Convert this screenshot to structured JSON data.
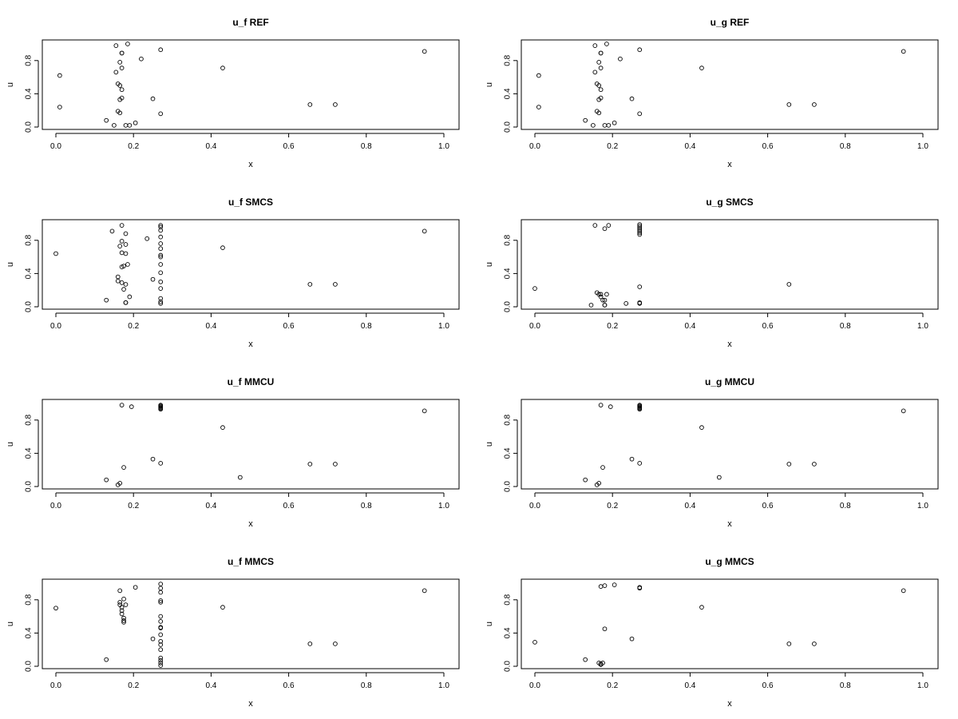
{
  "chart_data": [
    {
      "type": "scatter",
      "title": "u_f REF",
      "xlabel": "x",
      "ylabel": "u",
      "xlim": [
        0,
        1
      ],
      "ylim": [
        0,
        1
      ],
      "xticks": [
        "0.0",
        "0.2",
        "0.4",
        "0.6",
        "0.8",
        "1.0"
      ],
      "yticks": [
        "0.0",
        "0.4",
        "0.8"
      ],
      "points": [
        [
          0.01,
          0.62
        ],
        [
          0.01,
          0.24
        ],
        [
          0.13,
          0.08
        ],
        [
          0.15,
          0.02
        ],
        [
          0.155,
          0.98
        ],
        [
          0.155,
          0.66
        ],
        [
          0.16,
          0.52
        ],
        [
          0.16,
          0.19
        ],
        [
          0.165,
          0.5
        ],
        [
          0.165,
          0.33
        ],
        [
          0.165,
          0.78
        ],
        [
          0.165,
          0.17
        ],
        [
          0.17,
          0.89
        ],
        [
          0.17,
          0.35
        ],
        [
          0.17,
          0.45
        ],
        [
          0.17,
          0.71
        ],
        [
          0.17,
          0.89
        ],
        [
          0.18,
          0.02
        ],
        [
          0.185,
          1.0
        ],
        [
          0.19,
          0.02
        ],
        [
          0.205,
          0.05
        ],
        [
          0.22,
          0.82
        ],
        [
          0.25,
          0.34
        ],
        [
          0.27,
          0.93
        ],
        [
          0.27,
          0.16
        ],
        [
          0.43,
          0.71
        ],
        [
          0.655,
          0.27
        ],
        [
          0.72,
          0.27
        ],
        [
          0.95,
          0.91
        ]
      ]
    },
    {
      "type": "scatter",
      "title": "u_g REF",
      "xlabel": "x",
      "ylabel": "u",
      "xlim": [
        0,
        1
      ],
      "ylim": [
        0,
        1
      ],
      "xticks": [
        "0.0",
        "0.2",
        "0.4",
        "0.6",
        "0.8",
        "1.0"
      ],
      "yticks": [
        "0.0",
        "0.4",
        "0.8"
      ],
      "points": [
        [
          0.01,
          0.62
        ],
        [
          0.01,
          0.24
        ],
        [
          0.13,
          0.08
        ],
        [
          0.15,
          0.02
        ],
        [
          0.155,
          0.98
        ],
        [
          0.155,
          0.66
        ],
        [
          0.16,
          0.52
        ],
        [
          0.16,
          0.19
        ],
        [
          0.165,
          0.5
        ],
        [
          0.165,
          0.33
        ],
        [
          0.165,
          0.78
        ],
        [
          0.165,
          0.17
        ],
        [
          0.17,
          0.89
        ],
        [
          0.17,
          0.35
        ],
        [
          0.17,
          0.45
        ],
        [
          0.17,
          0.71
        ],
        [
          0.17,
          0.89
        ],
        [
          0.18,
          0.02
        ],
        [
          0.185,
          1.0
        ],
        [
          0.19,
          0.02
        ],
        [
          0.205,
          0.05
        ],
        [
          0.22,
          0.82
        ],
        [
          0.25,
          0.34
        ],
        [
          0.27,
          0.93
        ],
        [
          0.27,
          0.16
        ],
        [
          0.43,
          0.71
        ],
        [
          0.655,
          0.27
        ],
        [
          0.72,
          0.27
        ],
        [
          0.95,
          0.91
        ]
      ]
    },
    {
      "type": "scatter",
      "title": "u_f SMCS",
      "xlabel": "x",
      "ylabel": "u",
      "xlim": [
        0,
        1
      ],
      "ylim": [
        0,
        1
      ],
      "xticks": [
        "0.0",
        "0.2",
        "0.4",
        "0.6",
        "0.8",
        "1.0"
      ],
      "yticks": [
        "0.0",
        "0.4",
        "0.8"
      ],
      "points": [
        [
          0.0,
          0.64
        ],
        [
          0.13,
          0.08
        ],
        [
          0.145,
          0.91
        ],
        [
          0.16,
          0.31
        ],
        [
          0.16,
          0.36
        ],
        [
          0.165,
          0.73
        ],
        [
          0.17,
          0.29
        ],
        [
          0.17,
          0.98
        ],
        [
          0.17,
          0.65
        ],
        [
          0.17,
          0.48
        ],
        [
          0.17,
          0.79
        ],
        [
          0.175,
          0.49
        ],
        [
          0.175,
          0.21
        ],
        [
          0.18,
          0.05
        ],
        [
          0.18,
          0.27
        ],
        [
          0.18,
          0.05
        ],
        [
          0.18,
          0.75
        ],
        [
          0.18,
          0.88
        ],
        [
          0.18,
          0.64
        ],
        [
          0.185,
          0.51
        ],
        [
          0.19,
          0.12
        ],
        [
          0.235,
          0.82
        ],
        [
          0.25,
          0.33
        ],
        [
          0.27,
          0.98
        ],
        [
          0.27,
          0.96
        ],
        [
          0.27,
          0.92
        ],
        [
          0.27,
          0.84
        ],
        [
          0.27,
          0.76
        ],
        [
          0.27,
          0.7
        ],
        [
          0.27,
          0.62
        ],
        [
          0.27,
          0.6
        ],
        [
          0.27,
          0.51
        ],
        [
          0.27,
          0.41
        ],
        [
          0.27,
          0.3
        ],
        [
          0.27,
          0.22
        ],
        [
          0.27,
          0.1
        ],
        [
          0.27,
          0.06
        ],
        [
          0.27,
          0.04
        ],
        [
          0.43,
          0.71
        ],
        [
          0.655,
          0.27
        ],
        [
          0.72,
          0.27
        ],
        [
          0.95,
          0.91
        ]
      ]
    },
    {
      "type": "scatter",
      "title": "u_g SMCS",
      "xlabel": "x",
      "ylabel": "u",
      "xlim": [
        0,
        1
      ],
      "ylim": [
        0,
        1
      ],
      "xticks": [
        "0.0",
        "0.2",
        "0.4",
        "0.6",
        "0.8",
        "1.0"
      ],
      "yticks": [
        "0.0",
        "0.4",
        "0.8"
      ],
      "points": [
        [
          0.0,
          0.22
        ],
        [
          0.145,
          0.02
        ],
        [
          0.155,
          0.98
        ],
        [
          0.16,
          0.17
        ],
        [
          0.165,
          0.15
        ],
        [
          0.17,
          0.15
        ],
        [
          0.17,
          0.12
        ],
        [
          0.175,
          0.08
        ],
        [
          0.18,
          0.02
        ],
        [
          0.18,
          0.02
        ],
        [
          0.18,
          0.94
        ],
        [
          0.18,
          0.08
        ],
        [
          0.185,
          0.15
        ],
        [
          0.19,
          0.98
        ],
        [
          0.235,
          0.04
        ],
        [
          0.27,
          0.99
        ],
        [
          0.27,
          0.97
        ],
        [
          0.27,
          0.95
        ],
        [
          0.27,
          0.93
        ],
        [
          0.27,
          0.91
        ],
        [
          0.27,
          0.89
        ],
        [
          0.27,
          0.87
        ],
        [
          0.27,
          0.24
        ],
        [
          0.27,
          0.05
        ],
        [
          0.27,
          0.04
        ],
        [
          0.655,
          0.27
        ]
      ]
    },
    {
      "type": "scatter",
      "title": "u_f MMCU",
      "xlabel": "x",
      "ylabel": "u",
      "xlim": [
        0,
        1
      ],
      "ylim": [
        0,
        1
      ],
      "xticks": [
        "0.0",
        "0.2",
        "0.4",
        "0.6",
        "0.8",
        "1.0"
      ],
      "yticks": [
        "0.0",
        "0.4",
        "0.8"
      ],
      "points": [
        [
          0.13,
          0.08
        ],
        [
          0.16,
          0.02
        ],
        [
          0.165,
          0.04
        ],
        [
          0.17,
          0.98
        ],
        [
          0.175,
          0.23
        ],
        [
          0.195,
          0.96
        ],
        [
          0.25,
          0.33
        ],
        [
          0.27,
          0.98
        ],
        [
          0.27,
          0.97
        ],
        [
          0.27,
          0.96
        ],
        [
          0.27,
          0.95
        ],
        [
          0.27,
          0.94
        ],
        [
          0.27,
          0.93
        ],
        [
          0.27,
          0.28
        ],
        [
          0.43,
          0.71
        ],
        [
          0.475,
          0.11
        ],
        [
          0.655,
          0.27
        ],
        [
          0.72,
          0.27
        ],
        [
          0.95,
          0.91
        ]
      ]
    },
    {
      "type": "scatter",
      "title": "u_g MMCU",
      "xlabel": "x",
      "ylabel": "u",
      "xlim": [
        0,
        1
      ],
      "ylim": [
        0,
        1
      ],
      "xticks": [
        "0.0",
        "0.2",
        "0.4",
        "0.6",
        "0.8",
        "1.0"
      ],
      "yticks": [
        "0.0",
        "0.4",
        "0.8"
      ],
      "points": [
        [
          0.13,
          0.08
        ],
        [
          0.16,
          0.02
        ],
        [
          0.165,
          0.04
        ],
        [
          0.17,
          0.98
        ],
        [
          0.175,
          0.23
        ],
        [
          0.195,
          0.96
        ],
        [
          0.25,
          0.33
        ],
        [
          0.27,
          0.98
        ],
        [
          0.27,
          0.97
        ],
        [
          0.27,
          0.96
        ],
        [
          0.27,
          0.95
        ],
        [
          0.27,
          0.94
        ],
        [
          0.27,
          0.93
        ],
        [
          0.27,
          0.28
        ],
        [
          0.43,
          0.71
        ],
        [
          0.475,
          0.11
        ],
        [
          0.655,
          0.27
        ],
        [
          0.72,
          0.27
        ],
        [
          0.95,
          0.91
        ]
      ]
    },
    {
      "type": "scatter",
      "title": "u_f MMCS",
      "xlabel": "x",
      "ylabel": "u",
      "xlim": [
        0,
        1
      ],
      "ylim": [
        0,
        1
      ],
      "xticks": [
        "0.0",
        "0.2",
        "0.4",
        "0.6",
        "0.8",
        "1.0"
      ],
      "yticks": [
        "0.0",
        "0.4",
        "0.8"
      ],
      "points": [
        [
          0.0,
          0.7
        ],
        [
          0.13,
          0.08
        ],
        [
          0.165,
          0.91
        ],
        [
          0.165,
          0.77
        ],
        [
          0.165,
          0.74
        ],
        [
          0.17,
          0.71
        ],
        [
          0.17,
          0.67
        ],
        [
          0.17,
          0.63
        ],
        [
          0.175,
          0.58
        ],
        [
          0.175,
          0.55
        ],
        [
          0.175,
          0.53
        ],
        [
          0.175,
          0.81
        ],
        [
          0.18,
          0.74
        ],
        [
          0.205,
          0.95
        ],
        [
          0.25,
          0.33
        ],
        [
          0.27,
          0.99
        ],
        [
          0.27,
          0.94
        ],
        [
          0.27,
          0.89
        ],
        [
          0.27,
          0.79
        ],
        [
          0.27,
          0.77
        ],
        [
          0.27,
          0.6
        ],
        [
          0.27,
          0.54
        ],
        [
          0.27,
          0.47
        ],
        [
          0.27,
          0.46
        ],
        [
          0.27,
          0.38
        ],
        [
          0.27,
          0.3
        ],
        [
          0.27,
          0.26
        ],
        [
          0.27,
          0.2
        ],
        [
          0.27,
          0.1
        ],
        [
          0.27,
          0.07
        ],
        [
          0.27,
          0.04
        ],
        [
          0.27,
          0.01
        ],
        [
          0.43,
          0.71
        ],
        [
          0.655,
          0.27
        ],
        [
          0.72,
          0.27
        ],
        [
          0.95,
          0.91
        ]
      ]
    },
    {
      "type": "scatter",
      "title": "u_g MMCS",
      "xlabel": "x",
      "ylabel": "u",
      "xlim": [
        0,
        1
      ],
      "ylim": [
        0,
        1
      ],
      "xticks": [
        "0.0",
        "0.2",
        "0.4",
        "0.6",
        "0.8",
        "1.0"
      ],
      "yticks": [
        "0.0",
        "0.4",
        "0.8"
      ],
      "points": [
        [
          0.0,
          0.29
        ],
        [
          0.13,
          0.08
        ],
        [
          0.165,
          0.04
        ],
        [
          0.17,
          0.03
        ],
        [
          0.17,
          0.02
        ],
        [
          0.175,
          0.04
        ],
        [
          0.17,
          0.96
        ],
        [
          0.18,
          0.97
        ],
        [
          0.18,
          0.45
        ],
        [
          0.205,
          0.98
        ],
        [
          0.25,
          0.33
        ],
        [
          0.27,
          0.95
        ],
        [
          0.27,
          0.94
        ],
        [
          0.43,
          0.71
        ],
        [
          0.655,
          0.27
        ],
        [
          0.72,
          0.27
        ],
        [
          0.95,
          0.91
        ]
      ]
    }
  ]
}
